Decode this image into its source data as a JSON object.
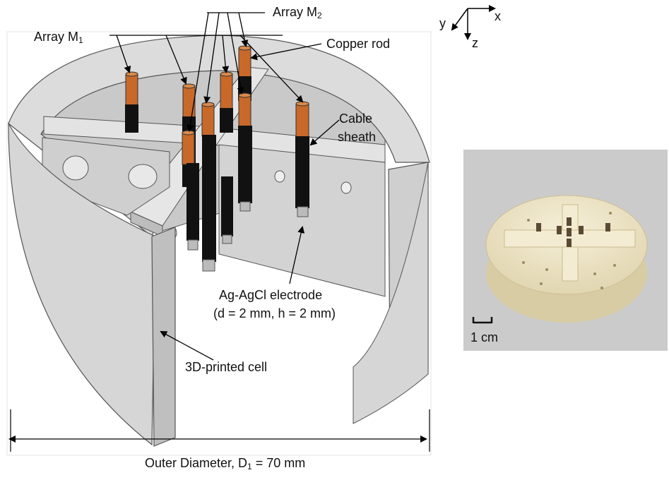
{
  "labels": {
    "array_m1": {
      "prefix": "Array M",
      "sub": "1"
    },
    "array_m2": {
      "prefix": "Array M",
      "sub": "2"
    },
    "copper_rod": "Copper rod",
    "cable_sheath_line1": "Cable",
    "cable_sheath_line2": "sheath",
    "electrode_line1": "Ag-AgCl electrode",
    "electrode_line2": "(d = 2 mm, h = 2 mm)",
    "cell": "3D-printed cell",
    "diameter": {
      "prefix": "Outer Diameter, D",
      "sub": "1",
      "suffix": " = 70 mm"
    }
  },
  "axes": {
    "x": "x",
    "y": "y",
    "z": "z"
  },
  "photo": {
    "scale_label": "1 cm"
  },
  "colors": {
    "cell_gray": "#d9d9d9",
    "cell_dark": "#a8a8a8",
    "copper": "#c8692a",
    "sheath": "#111111",
    "photo_bg": "#cfcfcf",
    "photo_cell": "#efe6c8"
  }
}
